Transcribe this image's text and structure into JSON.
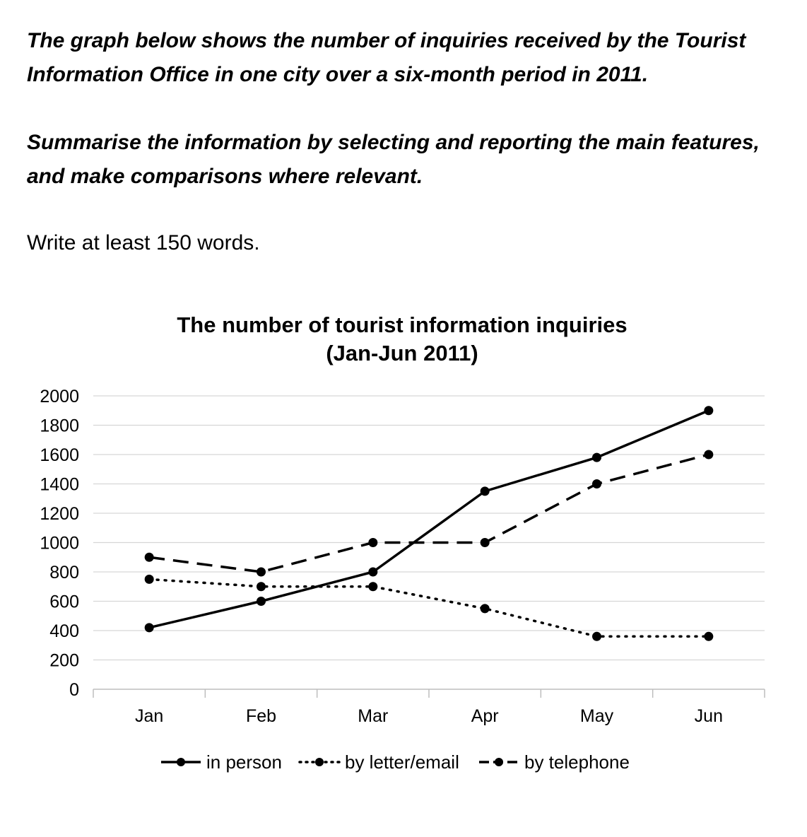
{
  "task": {
    "line1": "The graph below shows the number of inquiries received by the Tourist Information Office in one city over a six-month period in 2011.",
    "line2": "Summarise the information by selecting and reporting the main features, and make comparisons where relevant.",
    "line3": "Write at least 150 words."
  },
  "chart_data": {
    "type": "line",
    "title": "The number of tourist information inquiries",
    "subtitle": "(Jan-Jun 2011)",
    "xlabel": "",
    "ylabel": "",
    "categories": [
      "Jan",
      "Feb",
      "Mar",
      "Apr",
      "May",
      "Jun"
    ],
    "ylim": [
      0,
      2000
    ],
    "yticks": [
      0,
      200,
      400,
      600,
      800,
      1000,
      1200,
      1400,
      1600,
      1800,
      2000
    ],
    "grid": true,
    "legend_position": "bottom",
    "series": [
      {
        "name": "in person",
        "style": "solid",
        "values": [
          420,
          600,
          800,
          1350,
          1580,
          1900
        ]
      },
      {
        "name": "by letter/email",
        "style": "dotted",
        "values": [
          750,
          700,
          700,
          550,
          360,
          360
        ]
      },
      {
        "name": "by telephone",
        "style": "dashed",
        "values": [
          900,
          800,
          1000,
          1000,
          1400,
          1600
        ]
      }
    ]
  }
}
